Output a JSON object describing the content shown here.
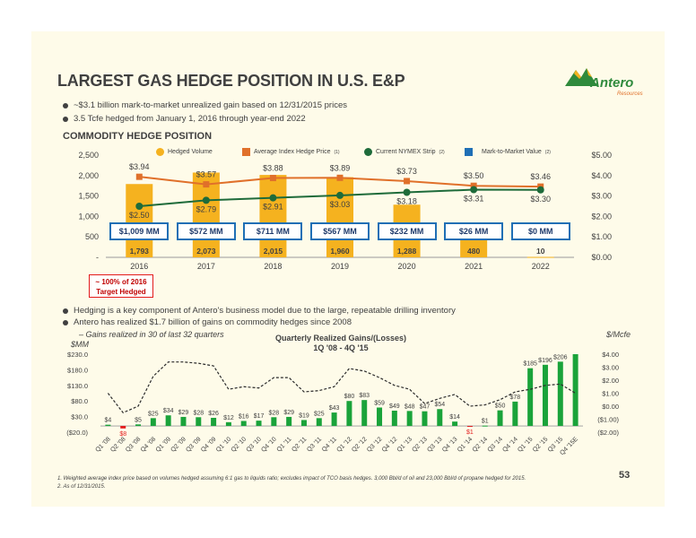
{
  "title": "LARGEST GAS HEDGE POSITION IN U.S. E&P",
  "logo": {
    "name": "Antero",
    "sub": "Resources"
  },
  "bullets_top": [
    "~$3.1 billion mark-to-market unrealized gain based on 12/31/2015 prices",
    "3.5 Tcfe hedged from January 1, 2016 through year-end 2022"
  ],
  "subhead": "COMMODITY HEDGE POSITION",
  "legend": {
    "hedged": "Hedged Volume",
    "avg": "Average Index Hedge Price",
    "avg_sup": "(1)",
    "nymex": "Current NYMEX Strip",
    "nymex_sup": "(2)",
    "mtm": "Mark-to-Market Value",
    "mtm_sup": "(2)"
  },
  "target_box": [
    "~ 100% of 2016",
    "Target Hedged"
  ],
  "bullets_mid": [
    "Hedging is a key component of Antero's business model due to the large, repeatable drilling inventory",
    "Antero has realized $1.7 billion of gains on commodity hedges since 2008"
  ],
  "note": "– Gains realized in 30 of last 32 quarters",
  "unit_left": "$MM",
  "unit_right": "$/Mcfe",
  "footnotes": [
    "1.  Weighted average index price based on volumes hedged assuming 6:1 gas to liquids ratio; excludes impact of TCO basis hedges.  3,000 Bbl/d of oil and 23,000 Bbl/d of propane hedged for 2015.",
    "2.  As of 12/31/2015."
  ],
  "page_number": "53",
  "colors": {
    "bar": "#f5b21f",
    "avg_line": "#e0702a",
    "nymex_line": "#1e6b3a",
    "mtm_box": "#1f6fb5",
    "qbar": "#1aa33a",
    "neg": "#e31b1b"
  },
  "chart_data": [
    {
      "type": "bar",
      "name": "hedge-position",
      "categories": [
        "2016",
        "2017",
        "2018",
        "2019",
        "2020",
        "2021",
        "2022"
      ],
      "series": [
        {
          "name": "Hedged Volume",
          "axis": "left",
          "values": [
            1793,
            2073,
            2015,
            1960,
            1288,
            480,
            10
          ],
          "labels": [
            "1,793",
            "2,073",
            "2,015",
            "1,960",
            "1,288",
            "480",
            "10"
          ]
        },
        {
          "name": "Average Index Hedge Price",
          "type": "line",
          "axis": "right",
          "values": [
            3.94,
            3.57,
            3.88,
            3.89,
            3.73,
            3.5,
            3.46
          ],
          "labels": [
            "$3.94",
            "$3.57",
            "$3.88",
            "$3.89",
            "$3.73",
            "$3.50",
            "$3.46"
          ]
        },
        {
          "name": "Current NYMEX Strip",
          "type": "line",
          "axis": "right",
          "values": [
            2.5,
            2.79,
            2.91,
            3.03,
            3.18,
            3.31,
            3.3
          ],
          "labels": [
            "$2.50",
            "$2.79",
            "$2.91",
            "$3.03",
            "$3.18",
            "$3.31",
            "$3.30"
          ]
        },
        {
          "name": "Mark-to-Market Value",
          "type": "label",
          "labels": [
            "$1,009 MM",
            "$572 MM",
            "$711 MM",
            "$567 MM",
            "$232 MM",
            "$26 MM",
            "$0 MM"
          ]
        }
      ],
      "y_left": {
        "ticks": [
          0,
          500,
          1000,
          1500,
          2000,
          2500
        ],
        "tick_labels": [
          "-",
          "500",
          "1,000",
          "1,500",
          "2,000",
          "2,500"
        ],
        "range": [
          0,
          2500
        ]
      },
      "y_right": {
        "ticks": [
          0,
          1,
          2,
          3,
          4,
          5
        ],
        "tick_labels": [
          "$0.00",
          "$1.00",
          "$2.00",
          "$3.00",
          "$4.00",
          "$5.00"
        ],
        "range": [
          0,
          5
        ]
      }
    },
    {
      "type": "bar",
      "name": "quarterly-gains",
      "title": "Quarterly Realized Gains/(Losses)",
      "subtitle": "1Q '08 - 4Q '15",
      "categories": [
        "Q1 '08",
        "Q2 '08",
        "Q3 '08",
        "Q4 '08",
        "Q1 '09",
        "Q2 '09",
        "Q3 '09",
        "Q4 '09",
        "Q1 '10",
        "Q2 '10",
        "Q3 '10",
        "Q4 '10",
        "Q1 '11",
        "Q2 '11",
        "Q3 '11",
        "Q4 '11",
        "Q1 '12",
        "Q2 '12",
        "Q3 '12",
        "Q4 '12",
        "Q1 '13",
        "Q2 '13",
        "Q3 '13",
        "Q4 '13",
        "Q1 '14",
        "Q2 '14",
        "Q3 '14",
        "Q4 '14",
        "Q1 '15",
        "Q2 '15",
        "Q3 '15",
        "Q4 '15E"
      ],
      "series": [
        {
          "name": "Realized Gains",
          "axis": "left",
          "values": [
            4,
            -8,
            5,
            25,
            34,
            29,
            28,
            26,
            12,
            16,
            17,
            28,
            29,
            19,
            25,
            43,
            80,
            83,
            59,
            49,
            48,
            47,
            54,
            14,
            -1,
            1,
            50,
            78,
            185,
            196,
            206,
            230
          ],
          "labels": [
            "$4",
            "$8",
            "$5",
            "$25",
            "$34",
            "$29",
            "$28",
            "$26",
            "$12",
            "$16",
            "$17",
            "$28",
            "$29",
            "$19",
            "$25",
            "$43",
            "$80",
            "$83",
            "$59",
            "$49",
            "$48",
            "$47",
            "$54",
            "$14",
            "$1",
            "$1",
            "$50",
            "$78",
            "$185",
            "$196",
            "$206",
            ""
          ]
        },
        {
          "name": "Price",
          "type": "line",
          "axis": "right",
          "values": [
            1.0,
            -0.5,
            0.0,
            2.3,
            3.4,
            3.4,
            3.3,
            3.1,
            1.3,
            1.5,
            1.4,
            2.2,
            2.2,
            1.1,
            1.2,
            1.5,
            2.9,
            2.7,
            2.2,
            1.6,
            1.3,
            0.2,
            0.6,
            0.9,
            0.0,
            0.1,
            0.5,
            1.1,
            1.3,
            1.6,
            1.7,
            1.0
          ]
        }
      ],
      "y_left": {
        "ticks": [
          -20,
          30,
          80,
          130,
          180,
          230
        ],
        "tick_labels": [
          "($20.0)",
          "$30.0",
          "$80.0",
          "$130.0",
          "$180.0",
          "$230.0"
        ],
        "range": [
          -20,
          230
        ]
      },
      "y_right": {
        "ticks": [
          -2,
          -1,
          0,
          1,
          2,
          3,
          4
        ],
        "tick_labels": [
          "($2.00)",
          "($1.00)",
          "$0.00",
          "$1.00",
          "$2.00",
          "$3.00",
          "$4.00"
        ],
        "range": [
          -2,
          4
        ]
      }
    }
  ]
}
